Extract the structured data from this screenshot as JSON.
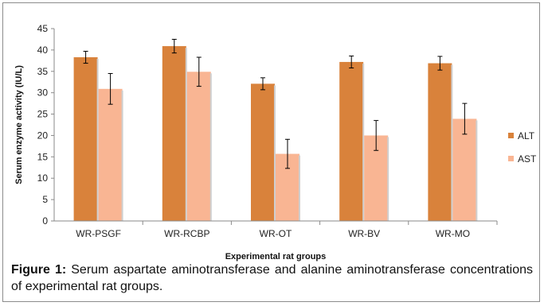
{
  "chart_data": {
    "type": "bar",
    "title": "",
    "xlabel": "Experimental rat groups",
    "ylabel": "Serum enzyme activity (IU/L)",
    "ylim": [
      0,
      45
    ],
    "yticks": [
      "0",
      "5",
      "10",
      "15",
      "20",
      "25",
      "30",
      "35",
      "40",
      "45"
    ],
    "grid": false,
    "legend_position": "right",
    "categories": [
      "WR-PSGF",
      "WR-RCBP",
      "WR-OT",
      "WR-BV",
      "WR-MO"
    ],
    "series": [
      {
        "name": "ALT",
        "color": "#d9823b",
        "values": [
          38.3,
          40.9,
          32.1,
          37.2,
          36.9
        ],
        "errors": [
          1.4,
          1.6,
          1.4,
          1.4,
          1.6
        ]
      },
      {
        "name": "AST",
        "color": "#f9b593",
        "values": [
          30.9,
          34.9,
          15.7,
          20.0,
          23.9
        ],
        "errors": [
          3.6,
          3.4,
          3.4,
          3.5,
          3.6
        ]
      }
    ]
  },
  "caption": {
    "label": "Figure 1:",
    "text": " Serum aspartate aminotransferase and alanine aminotransferase concentrations of experimental rat groups."
  }
}
